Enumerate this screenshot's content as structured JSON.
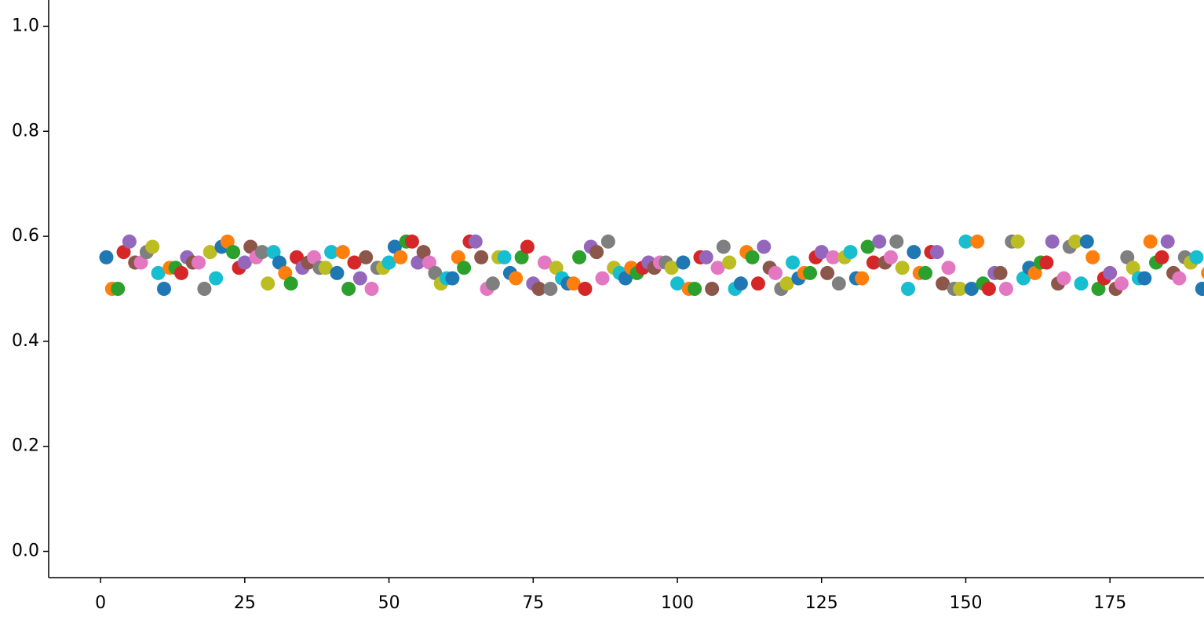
{
  "chart_data": {
    "type": "scatter",
    "x": [
      1,
      2,
      3,
      4,
      5,
      6,
      7,
      8,
      9,
      10,
      11,
      12,
      13,
      14,
      15,
      16,
      17,
      18,
      19,
      20,
      21,
      22,
      23,
      24,
      25,
      26,
      27,
      28,
      29,
      30,
      31,
      32,
      33,
      34,
      35,
      36,
      37,
      38,
      39,
      40,
      41,
      42,
      43,
      44,
      45,
      46,
      47,
      48,
      49,
      50,
      51,
      52,
      53,
      54,
      55,
      56,
      57,
      58,
      59,
      60,
      61,
      62,
      63,
      64,
      65,
      66,
      67,
      68,
      69,
      70,
      71,
      72,
      73,
      74,
      75,
      76,
      77,
      78,
      79,
      80,
      81,
      82,
      83,
      84,
      85,
      86,
      87,
      88,
      89,
      90,
      91,
      92,
      93,
      94,
      95,
      96,
      97,
      98,
      99,
      100,
      101,
      102,
      103,
      104,
      105,
      106,
      107,
      108,
      109,
      110,
      111,
      112,
      113,
      114,
      115,
      116,
      117,
      118,
      119,
      120,
      121,
      122,
      123,
      124,
      125,
      126,
      127,
      128,
      129,
      130,
      131,
      132,
      133,
      134,
      135,
      136,
      137,
      138,
      139,
      140,
      141,
      142,
      143,
      144,
      145,
      146,
      147,
      148,
      149,
      150,
      151,
      152,
      153,
      154,
      155,
      156,
      157,
      158,
      159,
      160,
      161,
      162,
      163,
      164,
      165,
      166,
      167,
      168,
      169,
      170,
      171,
      172,
      173,
      174,
      175,
      176,
      177,
      178,
      179,
      180,
      181,
      182,
      183,
      184,
      185,
      186,
      187,
      188,
      189,
      190,
      191,
      192
    ],
    "values": [
      0.56,
      0.5,
      0.5,
      0.57,
      0.59,
      0.55,
      0.55,
      0.57,
      0.58,
      0.53,
      0.5,
      0.54,
      0.54,
      0.53,
      0.56,
      0.55,
      0.55,
      0.5,
      0.57,
      0.52,
      0.58,
      0.59,
      0.57,
      0.54,
      0.55,
      0.58,
      0.56,
      0.57,
      0.51,
      0.57,
      0.55,
      0.53,
      0.51,
      0.56,
      0.54,
      0.55,
      0.56,
      0.54,
      0.54,
      0.57,
      0.53,
      0.57,
      0.5,
      0.55,
      0.52,
      0.56,
      0.5,
      0.54,
      0.54,
      0.55,
      0.58,
      0.56,
      0.59,
      0.59,
      0.55,
      0.57,
      0.55,
      0.53,
      0.51,
      0.52,
      0.52,
      0.56,
      0.54,
      0.59,
      0.59,
      0.56,
      0.5,
      0.51,
      0.56,
      0.56,
      0.53,
      0.52,
      0.56,
      0.58,
      0.51,
      0.5,
      0.55,
      0.5,
      0.54,
      0.52,
      0.51,
      0.51,
      0.56,
      0.5,
      0.58,
      0.57,
      0.52,
      0.59,
      0.54,
      0.53,
      0.52,
      0.54,
      0.53,
      0.54,
      0.55,
      0.54,
      0.55,
      0.55,
      0.54,
      0.51,
      0.55,
      0.5,
      0.5,
      0.56,
      0.56,
      0.5,
      0.54,
      0.58,
      0.55,
      0.5,
      0.51,
      0.57,
      0.56,
      0.51,
      0.58,
      0.54,
      0.53,
      0.5,
      0.51,
      0.55,
      0.52,
      0.53,
      0.53,
      0.56,
      0.57,
      0.53,
      0.56,
      0.51,
      0.56,
      0.57,
      0.52,
      0.52,
      0.58,
      0.55,
      0.59,
      0.55,
      0.56,
      0.59,
      0.54,
      0.5,
      0.57,
      0.53,
      0.53,
      0.57,
      0.57,
      0.51,
      0.54,
      0.5,
      0.5,
      0.59,
      0.5,
      0.59,
      0.51,
      0.5,
      0.53,
      0.53,
      0.5,
      0.59,
      0.59,
      0.52,
      0.54,
      0.53,
      0.55,
      0.55,
      0.59,
      0.51,
      0.52,
      0.58,
      0.59,
      0.51,
      0.59,
      0.56,
      0.5,
      0.52,
      0.53,
      0.5,
      0.51,
      0.56,
      0.54,
      0.52,
      0.52,
      0.59,
      0.55,
      0.56,
      0.59,
      0.53,
      0.52,
      0.56,
      0.55,
      0.56,
      0.5,
      0.53
    ],
    "palette": [
      "#1f77b4",
      "#ff7f0e",
      "#2ca02c",
      "#d62728",
      "#9467bd",
      "#8c564b",
      "#e377c2",
      "#7f7f7f",
      "#bcbd22",
      "#17becf"
    ],
    "xlim": [
      -9,
      191.3
    ],
    "ylim": [
      -0.05,
      1.05
    ],
    "xticks": [
      0,
      25,
      50,
      75,
      100,
      125,
      150,
      175
    ],
    "yticks": [
      {
        "value": 0,
        "label": "0.0"
      },
      0.2,
      0.4,
      0.6,
      0.8,
      {
        "value": 1,
        "label": "1.0"
      }
    ]
  }
}
